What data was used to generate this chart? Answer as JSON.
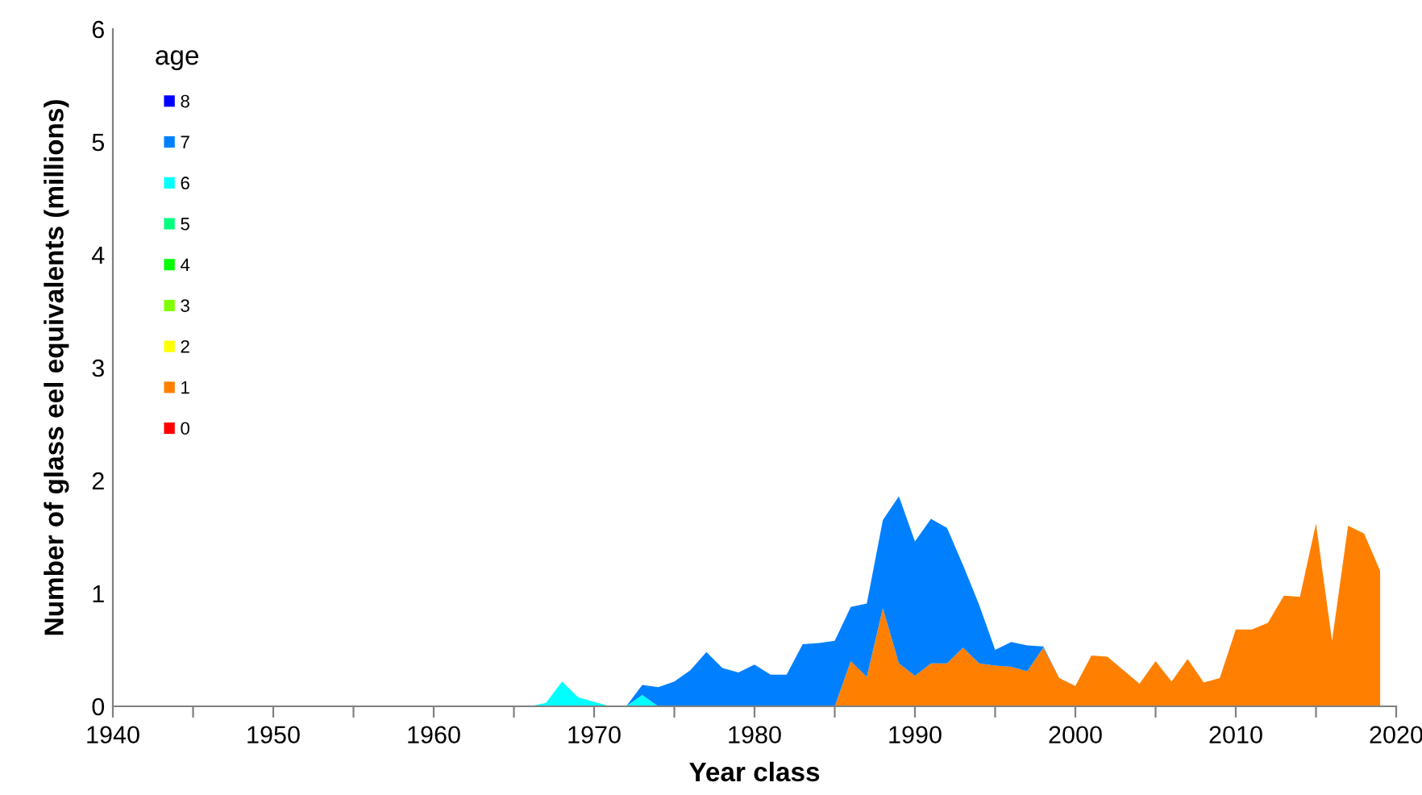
{
  "chart_data": {
    "type": "area",
    "stacked": true,
    "xlabel": "Year class",
    "ylabel": "Number of glass eel equivalents (millions)",
    "legend_title": "age",
    "legend": "top left",
    "grid": false,
    "x": [
      1966,
      1967,
      1968,
      1969,
      1970,
      1971,
      1972,
      1973,
      1974,
      1975,
      1976,
      1977,
      1978,
      1979,
      1980,
      1981,
      1982,
      1983,
      1984,
      1985,
      1986,
      1987,
      1988,
      1989,
      1990,
      1991,
      1992,
      1993,
      1994,
      1995,
      1996,
      1997,
      1998,
      1999,
      2000,
      2001,
      2002,
      2003,
      2004,
      2005,
      2006,
      2007,
      2008,
      2009,
      2010,
      2011,
      2012,
      2013,
      2014,
      2015,
      2016,
      2017,
      2018,
      2019
    ],
    "xlim": [
      1940,
      2020
    ],
    "xticks": [
      1940,
      {
        "value": 1945,
        "label": null
      },
      1950,
      {
        "value": 1955,
        "label": null
      },
      1960,
      {
        "value": 1965,
        "label": null
      },
      1970,
      {
        "value": 1975,
        "label": null
      },
      1980,
      {
        "value": 1985,
        "label": null
      },
      1990,
      {
        "value": 1995,
        "label": null
      },
      2000,
      {
        "value": 2005,
        "label": null
      },
      2010,
      {
        "value": 2015,
        "label": null
      },
      2020
    ],
    "ylim": [
      0,
      6
    ],
    "yticks": [
      0,
      1,
      2,
      3,
      4,
      5,
      6
    ],
    "series": [
      {
        "name": "0",
        "color": "#ff0000",
        "values": [
          null,
          null,
          null,
          null,
          null,
          null,
          null,
          null,
          null,
          null,
          null,
          null,
          null,
          null,
          null,
          null,
          null,
          null,
          null,
          null,
          null,
          null,
          null,
          null,
          null,
          null,
          null,
          null,
          null,
          null,
          null,
          null,
          null,
          null,
          null,
          null,
          null,
          null,
          null,
          null,
          null,
          null,
          null,
          null,
          null,
          null,
          null,
          null,
          null,
          null,
          null,
          null,
          null,
          null
        ]
      },
      {
        "name": "1",
        "color": "#ff8000",
        "values": [
          null,
          null,
          null,
          null,
          null,
          null,
          null,
          null,
          null,
          null,
          null,
          null,
          null,
          null,
          null,
          null,
          null,
          null,
          null,
          0,
          0.4,
          0.26,
          0.87,
          0.38,
          0.27,
          0.38,
          0.38,
          0.52,
          0.38,
          0.36,
          0.35,
          0.31,
          0.52,
          0.25,
          0.18,
          0.45,
          0.44,
          0.32,
          0.2,
          0.4,
          0.22,
          0.42,
          0.21,
          0.25,
          0.68,
          0.68,
          0.74,
          0.98,
          0.97,
          1.62,
          0.58,
          1.6,
          1.53,
          1.2
        ]
      },
      {
        "name": "2",
        "color": "#ffff00",
        "values": [
          null,
          null,
          null,
          null,
          null,
          null,
          null,
          null,
          null,
          null,
          null,
          null,
          null,
          null,
          null,
          null,
          null,
          null,
          null,
          null,
          null,
          null,
          null,
          null,
          null,
          null,
          null,
          null,
          null,
          null,
          null,
          null,
          null,
          null,
          null,
          null,
          null,
          null,
          null,
          null,
          null,
          null,
          null,
          null,
          null,
          null,
          null,
          null,
          null,
          null,
          null,
          null,
          null,
          null
        ]
      },
      {
        "name": "3",
        "color": "#80ff00",
        "values": [
          null,
          null,
          null,
          null,
          null,
          null,
          null,
          null,
          null,
          null,
          null,
          null,
          null,
          null,
          null,
          null,
          null,
          null,
          null,
          null,
          null,
          null,
          null,
          null,
          null,
          null,
          null,
          null,
          null,
          null,
          null,
          null,
          null,
          null,
          null,
          null,
          null,
          null,
          null,
          null,
          null,
          null,
          null,
          null,
          null,
          null,
          null,
          null,
          null,
          null,
          null,
          null,
          null,
          null
        ]
      },
      {
        "name": "4",
        "color": "#00ff00",
        "values": [
          null,
          null,
          null,
          null,
          null,
          null,
          null,
          null,
          null,
          null,
          null,
          null,
          null,
          null,
          null,
          null,
          null,
          null,
          null,
          null,
          null,
          null,
          null,
          null,
          null,
          null,
          null,
          null,
          null,
          null,
          null,
          null,
          null,
          null,
          null,
          null,
          null,
          null,
          null,
          null,
          null,
          null,
          null,
          null,
          null,
          null,
          null,
          null,
          null,
          null,
          null,
          null,
          null,
          null
        ]
      },
      {
        "name": "5",
        "color": "#00ff80",
        "values": [
          null,
          null,
          null,
          null,
          null,
          null,
          null,
          null,
          null,
          null,
          null,
          null,
          null,
          null,
          null,
          null,
          null,
          null,
          null,
          null,
          null,
          null,
          null,
          null,
          null,
          null,
          null,
          null,
          null,
          null,
          null,
          null,
          null,
          null,
          null,
          null,
          null,
          null,
          null,
          null,
          null,
          null,
          null,
          null,
          null,
          null,
          null,
          null,
          null,
          null,
          null,
          null,
          null,
          null
        ]
      },
      {
        "name": "6",
        "color": "#00ffff",
        "values": [
          0,
          0.03,
          0.22,
          0.08,
          0.04,
          0,
          0,
          0.1,
          0,
          null,
          null,
          null,
          null,
          null,
          null,
          null,
          null,
          null,
          null,
          null,
          null,
          null,
          null,
          null,
          null,
          null,
          null,
          null,
          null,
          null,
          null,
          null,
          null,
          null,
          null,
          null,
          null,
          null,
          null,
          null,
          null,
          null,
          null,
          null,
          null,
          null,
          null,
          null,
          null,
          null,
          null,
          null,
          null,
          null
        ]
      },
      {
        "name": "7",
        "color": "#0080ff",
        "values": [
          null,
          null,
          null,
          null,
          null,
          null,
          0,
          0.09,
          0.17,
          0.22,
          0.32,
          0.48,
          0.34,
          0.3,
          0.37,
          0.28,
          0.28,
          0.55,
          0.56,
          0.58,
          0.48,
          0.65,
          0.78,
          1.48,
          1.19,
          1.28,
          1.2,
          0.73,
          0.52,
          0.14,
          0.22,
          0.23,
          0.01,
          0,
          null,
          null,
          null,
          null,
          null,
          null,
          null,
          null,
          null,
          null,
          null,
          null,
          null,
          null,
          null,
          null,
          null,
          null,
          null,
          null
        ]
      },
      {
        "name": "8",
        "color": "#0000ff",
        "values": [
          null,
          null,
          null,
          null,
          null,
          null,
          null,
          null,
          null,
          null,
          null,
          null,
          null,
          null,
          null,
          null,
          null,
          null,
          null,
          null,
          null,
          null,
          null,
          null,
          null,
          null,
          null,
          null,
          null,
          null,
          null,
          null,
          null,
          null,
          null,
          null,
          null,
          null,
          null,
          null,
          null,
          null,
          null,
          null,
          null,
          null,
          null,
          null,
          null,
          null,
          null,
          null,
          null,
          null
        ]
      }
    ]
  }
}
